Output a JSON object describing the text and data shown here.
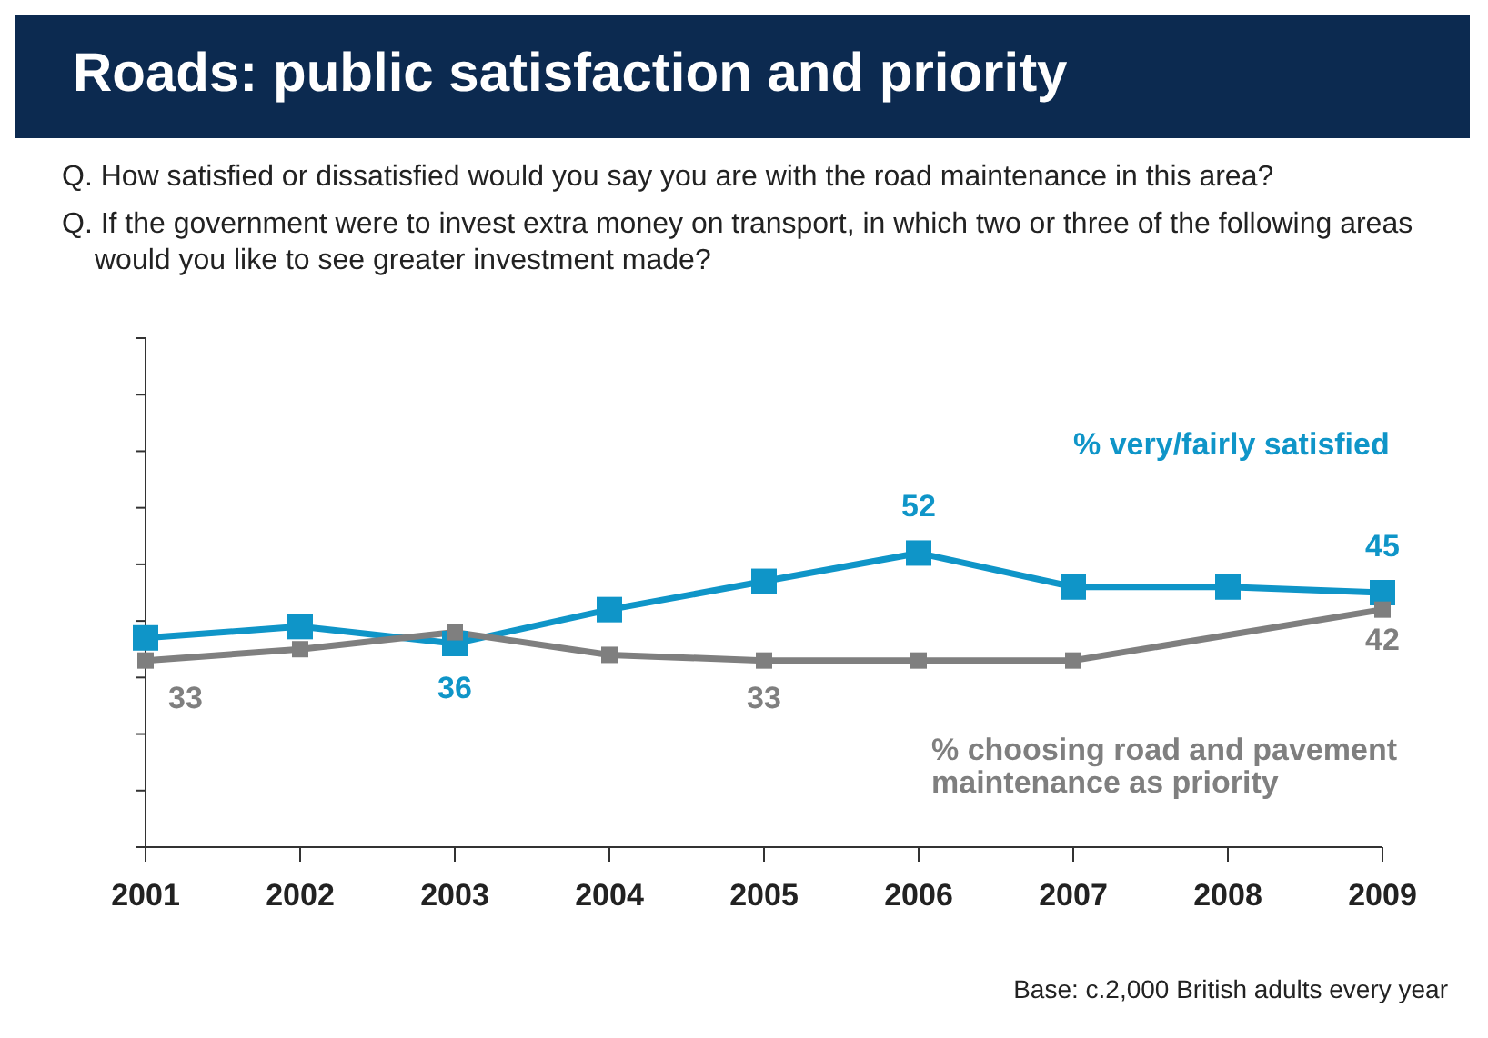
{
  "chart_data": {
    "type": "line",
    "title": "Roads: public satisfaction and priority",
    "annotations": [
      "Q. How satisfied or dissatisfied would you say you are with the road maintenance in this area?",
      "Q. If the government were to invest extra money on transport, in which two or three of the following areas would you like to see greater investment made?",
      "Base: c.2,000 British adults every year"
    ],
    "categories": [
      "2001",
      "2002",
      "2003",
      "2004",
      "2005",
      "2006",
      "2007",
      "2008",
      "2009"
    ],
    "series": [
      {
        "name": "% very/fairly satisfied",
        "color": "#0f95c8",
        "marker": "square",
        "values": [
          37,
          39,
          36,
          42,
          47,
          52,
          46,
          46,
          45
        ],
        "value_labels": [
          null,
          null,
          "36",
          null,
          null,
          "52",
          null,
          null,
          "45"
        ]
      },
      {
        "name": "% choosing road and pavement maintenance as priority",
        "color": "#7f7f7f",
        "marker": "square",
        "values": [
          33,
          35,
          38,
          34,
          33,
          33,
          33,
          null,
          42
        ],
        "value_labels": [
          "33",
          null,
          null,
          null,
          "33",
          null,
          null,
          null,
          "42"
        ]
      }
    ],
    "ylim": [
      0,
      90
    ],
    "yticks": [
      {
        "value": 0,
        "label": null
      },
      {
        "value": 10,
        "label": null
      },
      {
        "value": 20,
        "label": null
      },
      {
        "value": 30,
        "label": null
      },
      {
        "value": 40,
        "label": null
      },
      {
        "value": 50,
        "label": null
      },
      {
        "value": 60,
        "label": null
      },
      {
        "value": 70,
        "label": null
      },
      {
        "value": 80,
        "label": null
      },
      {
        "value": 90,
        "label": null
      }
    ],
    "tick_labels": "x",
    "grid": false,
    "legend": false
  }
}
